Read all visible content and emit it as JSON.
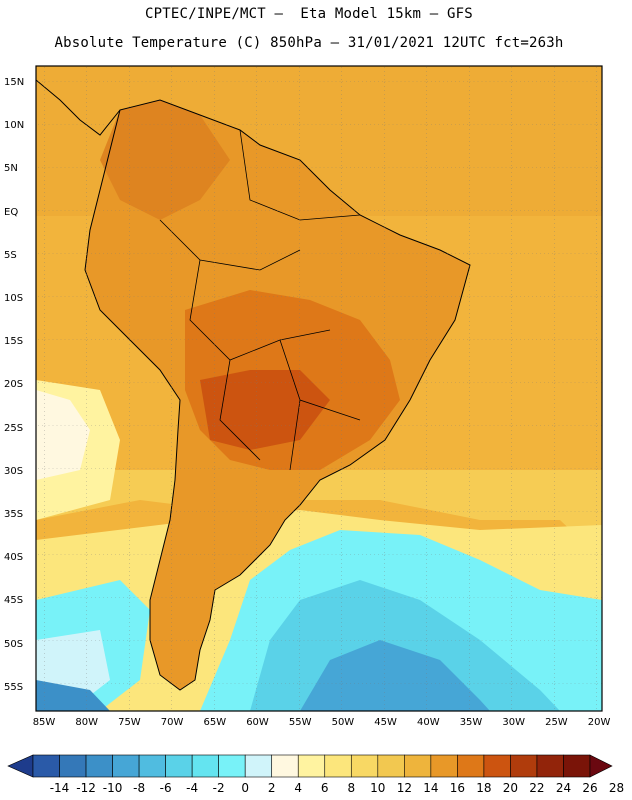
{
  "title_line1": "CPTEC/INPE/MCT –  Eta Model 15km – GFS",
  "title_line2": "Absolute Temperature (C) 850hPa – 31/01/2021 12UTC fct=263h",
  "lat_labels": [
    "15N",
    "10N",
    "5N",
    "EQ",
    "5S",
    "10S",
    "15S",
    "20S",
    "25S",
    "30S",
    "35S",
    "40S",
    "45S",
    "50S",
    "55S"
  ],
  "lon_labels": [
    "85W",
    "80W",
    "75W",
    "70W",
    "65W",
    "60W",
    "55W",
    "50W",
    "45W",
    "40W",
    "35W",
    "30W",
    "25W",
    "20W"
  ],
  "colorbar": {
    "labels": [
      "-14",
      "-12",
      "-10",
      "-8",
      "-6",
      "-4",
      "-2",
      "0",
      "2",
      "4",
      "6",
      "8",
      "10",
      "12",
      "14",
      "16",
      "18",
      "20",
      "22",
      "24",
      "26",
      "28"
    ],
    "colors": [
      "#1e3c8c",
      "#2a5aa8",
      "#3478b8",
      "#3c90c8",
      "#46a6d6",
      "#50bce0",
      "#5ad2e8",
      "#64e4f0",
      "#78f2f8",
      "#d0f4fa",
      "#fff8e0",
      "#fff3a0",
      "#fce67c",
      "#f8d864",
      "#f2c850",
      "#eeb43c",
      "#e89828",
      "#de7818",
      "#cc5410",
      "#b03c0c",
      "#92240a",
      "#7a1408",
      "#6a0810"
    ]
  },
  "colors": {
    "ocean_warm": "#f2b43c",
    "land_hot": "#cc5410",
    "land_warm": "#e08a22",
    "cold_water": "#5ad2e8",
    "mild_water": "#fce67c"
  }
}
